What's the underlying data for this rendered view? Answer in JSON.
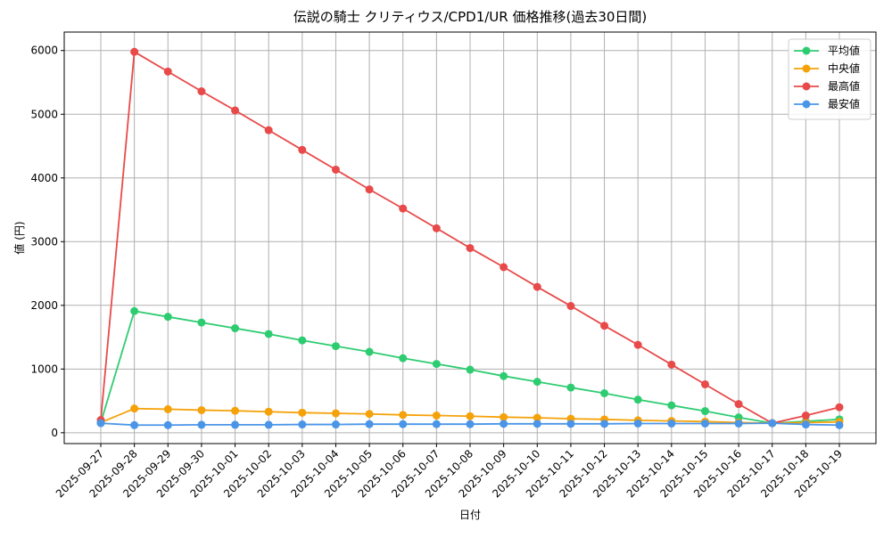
{
  "chart_data": {
    "type": "line",
    "title": "伝説の騎士 クリティウス/CPD1/UR 価格推移(過去30日間)",
    "x_label": "日付",
    "y_label": "値 (円)",
    "categories": [
      "2025-09-27",
      "2025-09-28",
      "2025-09-29",
      "2025-09-30",
      "2025-10-01",
      "2025-10-02",
      "2025-10-03",
      "2025-10-04",
      "2025-10-05",
      "2025-10-06",
      "2025-10-07",
      "2025-10-08",
      "2025-10-09",
      "2025-10-10",
      "2025-10-11",
      "2025-10-12",
      "2025-10-13",
      "2025-10-14",
      "2025-10-15",
      "2025-10-16",
      "2025-10-17",
      "2025-10-18",
      "2025-10-19"
    ],
    "series": [
      {
        "name": "平均値",
        "color": "#2ecc71",
        "values": [
          160,
          1910,
          1820,
          1730,
          1640,
          1550,
          1450,
          1360,
          1270,
          1170,
          1080,
          990,
          890,
          800,
          710,
          620,
          520,
          430,
          340,
          240,
          150,
          180,
          210
        ]
      },
      {
        "name": "中央値",
        "color": "#f5a20a",
        "values": [
          160,
          380,
          370,
          355,
          345,
          330,
          315,
          305,
          295,
          280,
          270,
          260,
          245,
          235,
          220,
          210,
          195,
          185,
          175,
          160,
          150,
          160,
          170
        ]
      },
      {
        "name": "最高値",
        "color": "#e84a4a",
        "values": [
          200,
          5980,
          5670,
          5360,
          5060,
          4750,
          4440,
          4130,
          3820,
          3520,
          3210,
          2900,
          2600,
          2290,
          1990,
          1680,
          1380,
          1070,
          760,
          450,
          150,
          270,
          400
        ]
      },
      {
        "name": "最安値",
        "color": "#4a95e8",
        "values": [
          150,
          120,
          120,
          125,
          125,
          125,
          130,
          130,
          135,
          135,
          135,
          135,
          140,
          140,
          140,
          140,
          145,
          145,
          145,
          145,
          150,
          130,
          120
        ]
      }
    ],
    "ylim": [
      -170,
      6290
    ],
    "yticks": [
      0,
      1000,
      2000,
      3000,
      4000,
      5000,
      6000
    ],
    "grid": true,
    "legend": "upper right"
  }
}
